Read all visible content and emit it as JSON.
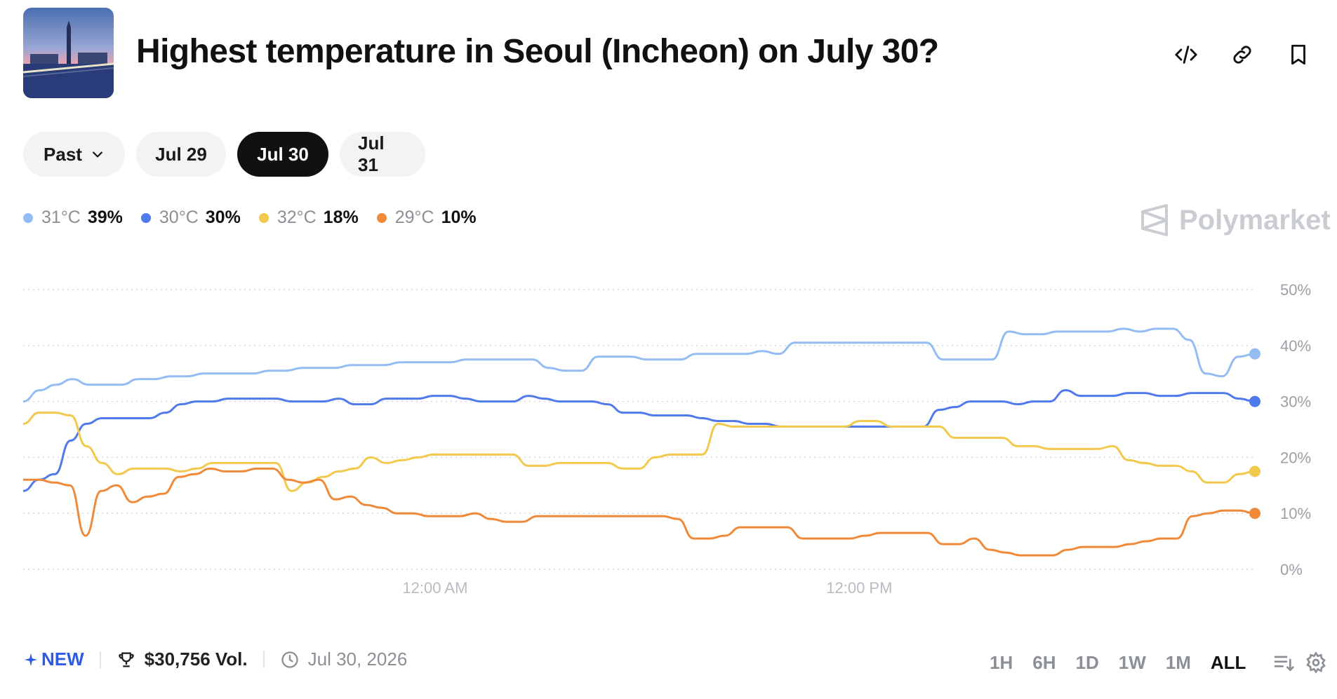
{
  "header": {
    "title": "Highest temperature in Seoul (Incheon) on July 30?",
    "icons": [
      "embed-code-icon",
      "link-icon",
      "bookmark-icon"
    ]
  },
  "tabs": [
    {
      "label": "Past",
      "dropdown": true,
      "active": false
    },
    {
      "label": "Jul 29",
      "active": false
    },
    {
      "label": "Jul 30",
      "active": true
    },
    {
      "label": "Jul 31",
      "active": false
    }
  ],
  "legend": [
    {
      "label": "31°C",
      "value": "39%",
      "color": "#93bdf2"
    },
    {
      "label": "30°C",
      "value": "30%",
      "color": "#5079ec"
    },
    {
      "label": "32°C",
      "value": "18%",
      "color": "#f2c94c"
    },
    {
      "label": "29°C",
      "value": "10%",
      "color": "#ef8a3a"
    }
  ],
  "brand": "Polymarket",
  "chart_data": {
    "type": "line",
    "ylim": [
      0,
      50
    ],
    "yticks": [
      "0%",
      "10%",
      "20%",
      "30%",
      "40%",
      "50%"
    ],
    "xticks": [
      "12:00 AM",
      "12:00 PM"
    ],
    "grid": true,
    "series": [
      {
        "name": "31°C",
        "color": "#93bdf2",
        "values": [
          30,
          32,
          33,
          34,
          33,
          33,
          33,
          34,
          34,
          34.5,
          34.5,
          35,
          35,
          35,
          35,
          35.5,
          35.5,
          36,
          36,
          36,
          36.5,
          36.5,
          36.5,
          37,
          37,
          37,
          37,
          37.5,
          37.5,
          37.5,
          37.5,
          37.5,
          36,
          35.5,
          35.5,
          38,
          38,
          38,
          37.5,
          37.5,
          37.5,
          38.5,
          38.5,
          38.5,
          38.5,
          39,
          38.5,
          40.5,
          40.5,
          40.5,
          40.5,
          40.5,
          40.5,
          40.5,
          40.5,
          40.5,
          37.5,
          37.5,
          37.5,
          37.5,
          42.5,
          42,
          42,
          42.5,
          42.5,
          42.5,
          42.5,
          43,
          42.5,
          43,
          43,
          41,
          35,
          34.5,
          38,
          38.5
        ]
      },
      {
        "name": "30°C",
        "color": "#5079ec",
        "values": [
          14,
          16,
          17,
          23,
          26,
          27,
          27,
          27,
          27,
          28,
          29.5,
          30,
          30,
          30.5,
          30.5,
          30.5,
          30.5,
          30,
          30,
          30,
          30.5,
          29.5,
          29.5,
          30.5,
          30.5,
          30.5,
          31,
          31,
          30.5,
          30,
          30,
          30,
          31,
          30.5,
          30,
          30,
          30,
          29.5,
          28,
          28,
          27.5,
          27.5,
          27.5,
          27,
          26.5,
          26.5,
          26,
          26,
          25.5,
          25.5,
          25.5,
          25.5,
          25.5,
          25.5,
          25.5,
          25.5,
          25.5,
          25.5,
          28.5,
          29,
          30,
          30,
          30,
          29.5,
          30,
          30,
          32,
          31,
          31,
          31,
          31.5,
          31.5,
          31,
          31,
          31.5,
          31.5,
          31.5,
          30.5,
          30
        ]
      },
      {
        "name": "32°C",
        "color": "#f2c94c",
        "values": [
          26,
          28,
          28,
          27.5,
          22,
          19,
          17,
          18,
          18,
          18,
          17.5,
          18,
          19,
          19,
          19,
          19,
          19,
          14,
          15.5,
          16.5,
          17.5,
          18,
          20,
          19,
          19.5,
          20,
          20.5,
          20.5,
          20.5,
          20.5,
          20.5,
          20.5,
          18.5,
          18.5,
          19,
          19,
          19,
          19,
          18,
          18,
          20,
          20.5,
          20.5,
          20.5,
          26,
          25.5,
          25.5,
          25.5,
          25.5,
          25.5,
          25.5,
          25.5,
          25.5,
          26.5,
          26.5,
          25.5,
          25.5,
          25.5,
          25.5,
          23.5,
          23.5,
          23.5,
          23.5,
          22,
          22,
          21.5,
          21.5,
          21.5,
          21.5,
          22,
          19.5,
          19,
          18.5,
          18.5,
          17.5,
          15.5,
          15.5,
          17,
          17.5
        ]
      },
      {
        "name": "29°C",
        "color": "#ef8a3a",
        "values": [
          16,
          16,
          15.5,
          15,
          6,
          14,
          15,
          12,
          13,
          13.5,
          16.5,
          17,
          18,
          17.5,
          17.5,
          18,
          18,
          16,
          15.5,
          16,
          12.5,
          13,
          11.5,
          11,
          10,
          10,
          9.5,
          9.5,
          9.5,
          10,
          9,
          8.5,
          8.5,
          9.5,
          9.5,
          9.5,
          9.5,
          9.5,
          9.5,
          9.5,
          9.5,
          9.5,
          9,
          5.5,
          5.5,
          6,
          7.5,
          7.5,
          7.5,
          7.5,
          5.5,
          5.5,
          5.5,
          5.5,
          6,
          6.5,
          6.5,
          6.5,
          6.5,
          4.5,
          4.5,
          5.5,
          3.5,
          3,
          2.5,
          2.5,
          2.5,
          3.5,
          4,
          4,
          4,
          4.5,
          5,
          5.5,
          5.5,
          9.5,
          10,
          10.5,
          10.5,
          10
        ]
      }
    ]
  },
  "footer": {
    "new_label": "NEW",
    "volume": "$30,756 Vol.",
    "date": "Jul 30, 2026",
    "ranges": [
      "1H",
      "6H",
      "1D",
      "1W",
      "1M",
      "ALL"
    ],
    "active_range": "ALL"
  }
}
